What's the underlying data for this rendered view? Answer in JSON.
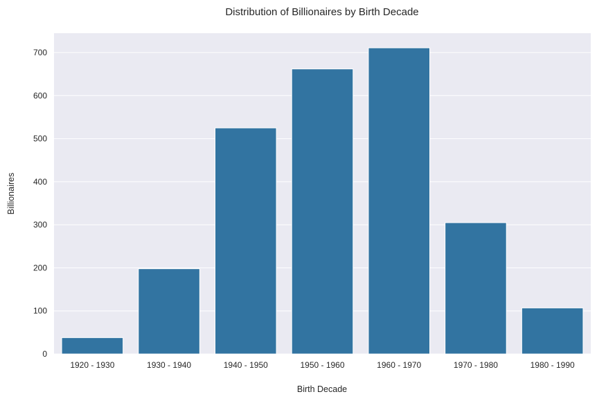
{
  "chart_data": {
    "type": "bar",
    "title": "Distribution of Billionaires by Birth Decade",
    "xlabel": "Birth Decade",
    "ylabel": "Billionaires",
    "categories": [
      "1920 - 1930",
      "1930 - 1940",
      "1940 - 1950",
      "1950 - 1960",
      "1960 - 1970",
      "1970 - 1980",
      "1980 - 1990"
    ],
    "values": [
      38,
      198,
      525,
      662,
      711,
      305,
      107
    ],
    "ylim": [
      0,
      745
    ],
    "yticks": [
      0,
      100,
      200,
      300,
      400,
      500,
      600,
      700
    ],
    "grid": true,
    "legend": "none",
    "colors": {
      "bar": "#3274a1",
      "background": "#eaeaf2",
      "grid": "#ffffff"
    }
  }
}
